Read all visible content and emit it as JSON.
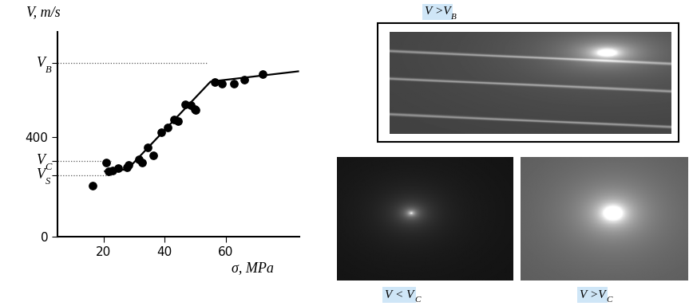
{
  "chart_data": {
    "type": "scatter",
    "x_label": "σ, MPa",
    "y_label": "V, m/s",
    "series": [
      {
        "type": "scatter",
        "color": "#000000",
        "marker": "o",
        "x": [
          16.6,
          20.8,
          21.8,
          22.9,
          24.7,
          27.8,
          28.3,
          31.7,
          32.7,
          34.5,
          36.4,
          39.0,
          41.0,
          43.1,
          44.4,
          46.7,
          48.5,
          49.9,
          50.1,
          56.4,
          58.7,
          62.6,
          66.0,
          72.0
        ],
        "values": [
          205,
          298,
          262,
          266,
          275,
          278,
          288,
          310,
          298,
          358,
          326,
          419,
          438,
          470,
          464,
          531,
          528,
          509,
          506,
          618,
          614,
          614,
          630,
          650
        ]
      },
      {
        "type": "line",
        "color": "#000000",
        "line_style": "solid",
        "x": [
          20.5,
          27.8,
          55.0,
          83.6
        ],
        "values": [
          262,
          269,
          621,
          662
        ]
      }
    ],
    "xlim": [
      5,
      84
    ],
    "ylim": [
      0,
      820
    ],
    "xticks": [
      20,
      40,
      60
    ],
    "yticks": [
      0,
      {
        "value": 246,
        "label": "V",
        "subscript": "S"
      },
      {
        "value": 304,
        "label": "V",
        "subscript": "C"
      },
      400,
      {
        "value": 694,
        "label": "V",
        "subscript": "B"
      }
    ],
    "grid": false
  },
  "images": [
    {
      "caption": {
        "text": "V >V",
        "subscript": "B"
      }
    },
    {
      "caption": {
        "text": "V < V",
        "subscript": "C"
      }
    },
    {
      "caption": {
        "text": "V >V",
        "subscript": "C"
      }
    }
  ]
}
